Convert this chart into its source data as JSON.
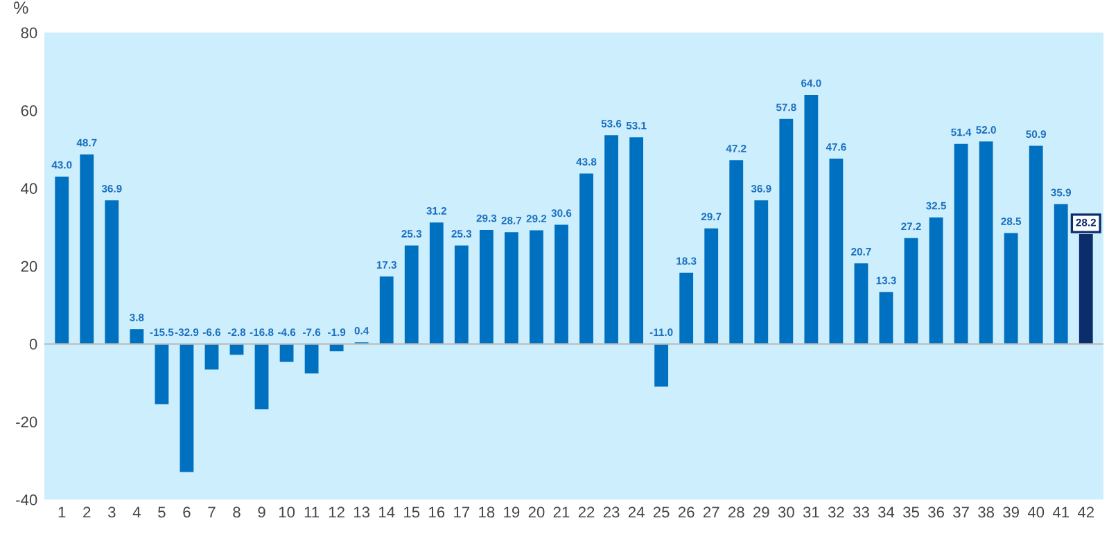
{
  "chart_data": {
    "type": "bar",
    "ylabel": "%",
    "categories": [
      "1",
      "2",
      "3",
      "4",
      "5",
      "6",
      "7",
      "8",
      "9",
      "10",
      "11",
      "12",
      "13",
      "14",
      "15",
      "16",
      "17",
      "18",
      "19",
      "20",
      "21",
      "22",
      "23",
      "24",
      "25",
      "26",
      "27",
      "28",
      "29",
      "30",
      "31",
      "32",
      "33",
      "34",
      "35",
      "36",
      "37",
      "38",
      "39",
      "40",
      "41",
      "42"
    ],
    "values": [
      43.0,
      48.7,
      36.9,
      3.8,
      -15.5,
      -32.9,
      -6.6,
      -2.8,
      -16.8,
      -4.6,
      -7.6,
      -1.9,
      0.4,
      17.3,
      25.3,
      31.2,
      25.3,
      29.3,
      28.7,
      29.2,
      30.6,
      43.8,
      53.6,
      53.1,
      -11.0,
      18.3,
      29.7,
      47.2,
      36.9,
      57.8,
      64.0,
      47.6,
      20.7,
      13.3,
      27.2,
      32.5,
      51.4,
      52.0,
      28.5,
      50.9,
      35.9,
      28.2
    ],
    "colors": [
      "#0070c0",
      "#0070c0",
      "#0070c0",
      "#0070c0",
      "#0070c0",
      "#0070c0",
      "#0070c0",
      "#0070c0",
      "#0070c0",
      "#0070c0",
      "#0070c0",
      "#0070c0",
      "#0070c0",
      "#0070c0",
      "#0070c0",
      "#0070c0",
      "#0070c0",
      "#0070c0",
      "#0070c0",
      "#0070c0",
      "#0070c0",
      "#0070c0",
      "#0070c0",
      "#0070c0",
      "#0070c0",
      "#0070c0",
      "#0070c0",
      "#0070c0",
      "#0070c0",
      "#0070c0",
      "#0070c0",
      "#0070c0",
      "#0070c0",
      "#0070c0",
      "#0070c0",
      "#0070c0",
      "#0070c0",
      "#0070c0",
      "#0070c0",
      "#0070c0",
      "#0070c0",
      "#0c2d6b"
    ],
    "value_labels": [
      "43.0",
      "48.7",
      "36.9",
      "3.8",
      "-15.5",
      "-32.9",
      "-6.6",
      "-2.8",
      "-16.8",
      "-4.6",
      "-7.6",
      "-1.9",
      "0.4",
      "17.3",
      "25.3",
      "31.2",
      "25.3",
      "29.3",
      "28.7",
      "29.2",
      "30.6",
      "43.8",
      "53.6",
      "53.1",
      "-11.0",
      "18.3",
      "29.7",
      "47.2",
      "36.9",
      "57.8",
      "64.0",
      "47.6",
      "20.7",
      "13.3",
      "27.2",
      "32.5",
      "51.4",
      "52.0",
      "28.5",
      "50.9",
      "35.9",
      "28.2"
    ],
    "grid": false,
    "ref_lines": [
      {
        "axis": "y",
        "value": 0,
        "color": "#bbbbbb"
      }
    ],
    "ylim": [
      -40,
      80
    ],
    "yticks": [
      -40,
      -20,
      0,
      20,
      40,
      60,
      80
    ]
  }
}
